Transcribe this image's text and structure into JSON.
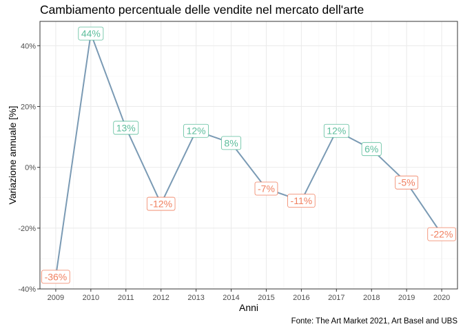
{
  "chart_data": {
    "type": "line",
    "title": "Cambiamento percentuale delle vendite nel mercato dell'arte",
    "xlabel": "Anni",
    "ylabel": "Variazione annuale [%]",
    "caption": "Fonte: The Art Market 2021, Art Basel and UBS",
    "x": [
      "2009",
      "2010",
      "2011",
      "2012",
      "2013",
      "2014",
      "2015",
      "2016",
      "2017",
      "2018",
      "2019",
      "2020"
    ],
    "values": [
      -36,
      44,
      13,
      -12,
      12,
      8,
      -7,
      -11,
      12,
      6,
      -5,
      -22
    ],
    "point_labels": [
      "-36%",
      "44%",
      "13%",
      "-12%",
      "12%",
      "8%",
      "-7%",
      "-11%",
      "12%",
      "6%",
      "-5%",
      "-22%"
    ],
    "ylim": [
      -40,
      48
    ],
    "yticks": [
      -40,
      -20,
      0,
      20,
      40
    ],
    "ytick_labels": [
      "-40%",
      "-20%",
      "0%",
      "20%",
      "40%"
    ],
    "grid": true,
    "legend": "none",
    "colors": {
      "line": "#7a9ab4",
      "positive": "#5cbd9b",
      "negative": "#f07f5f",
      "panel_border": "#333333",
      "grid_major": "#ebebeb",
      "grid_minor": "#f4f4f4"
    }
  }
}
